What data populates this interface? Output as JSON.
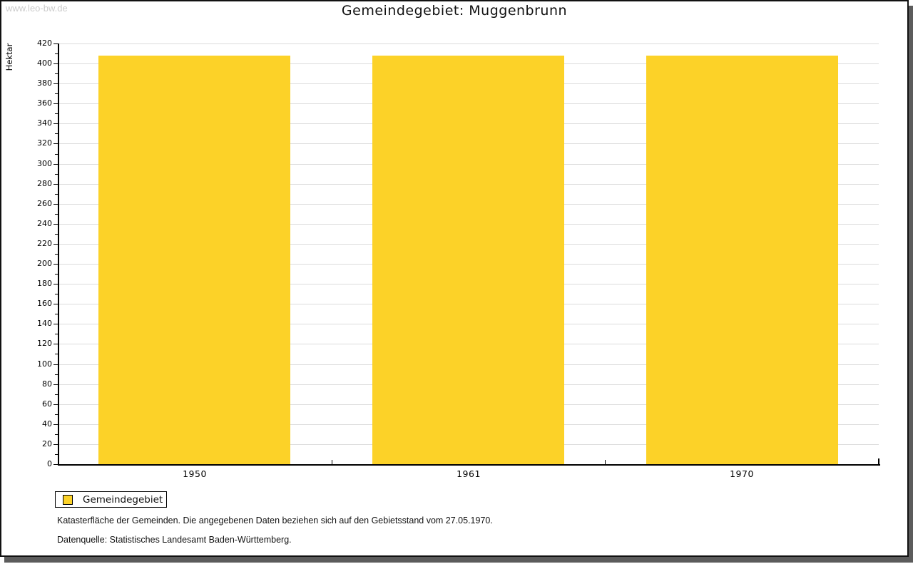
{
  "watermark": "www.leo-bw.de",
  "title": "Gemeindegebiet: Muggenbrunn",
  "chart_data": {
    "type": "bar",
    "categories": [
      "1950",
      "1961",
      "1970"
    ],
    "series": [
      {
        "name": "Gemeindegebiet",
        "values": [
          408,
          408,
          408
        ],
        "color": "#FCD228"
      }
    ],
    "title": "Gemeindegebiet: Muggenbrunn",
    "xlabel": "",
    "ylabel": "Hektar",
    "ylim": [
      0,
      420
    ],
    "ytick_step": 20,
    "yminor_step": 10,
    "grid": true,
    "legend_position": "bottom-left"
  },
  "legend": {
    "items": [
      {
        "label": "Gemeindegebiet",
        "color": "#FCD228"
      }
    ]
  },
  "footnotes": [
    "Katasterfläche der Gemeinden. Die angegebenen Daten beziehen sich auf den Gebietsstand vom 27.05.1970.",
    "Datenquelle: Statistisches Landesamt Baden-Württemberg."
  ],
  "colors": {
    "bar": "#FCD228",
    "grid": "#DCDCDC",
    "axis": "#000000",
    "watermark": "#CBCBCB"
  }
}
